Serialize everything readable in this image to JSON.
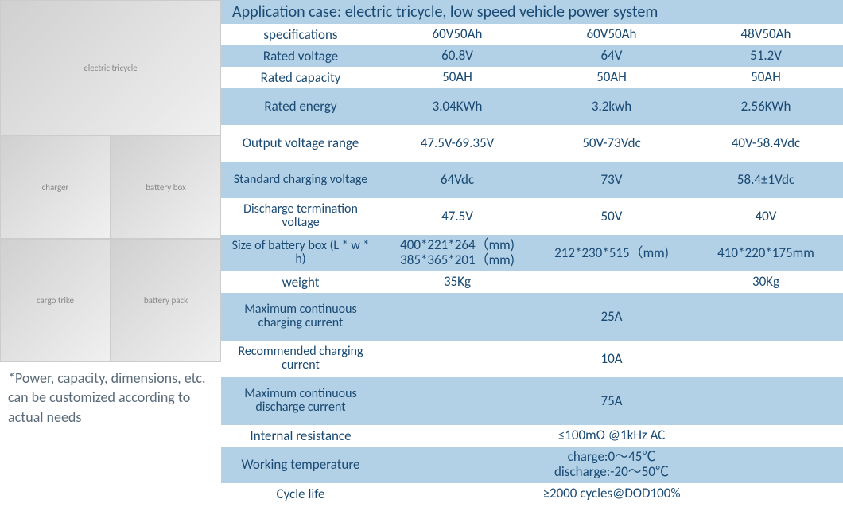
{
  "colors": {
    "band": "#b2d0e6",
    "light": "#ffffff",
    "text": "#1a4a73",
    "footnote": "#5b6b7a"
  },
  "title": "Application case: electric tricycle, low speed vehicle power system",
  "footnote": "*Power, capacity, dimensions, etc. can be customized according to actual needs",
  "images": {
    "top": "electric tricycle",
    "mid_left": "charger",
    "mid_right": "battery box",
    "bot_left": "cargo trike",
    "bot_right": "battery pack"
  },
  "rows": [
    {
      "type": "light",
      "label": "specifications",
      "v1": "60V50Ah",
      "v2": "60V50Ah",
      "v3": "48V50Ah"
    },
    {
      "type": "band",
      "label": "Rated voltage",
      "v1": "60.8V",
      "v2": "64V",
      "v3": "51.2V"
    },
    {
      "type": "light",
      "label": "Rated capacity",
      "v1": "50AH",
      "v2": "50AH",
      "v3": "50AH"
    },
    {
      "type": "band",
      "h": "h2",
      "label": "Rated energy",
      "v1": "3.04KWh",
      "v2": "3.2kwh",
      "v3": "2.56KWh"
    },
    {
      "type": "light",
      "h": "h2",
      "label": "Output voltage range",
      "v1": "47.5V-69.35V",
      "v2": "50V-73Vdc",
      "v3": "40V-58.4Vdc"
    },
    {
      "type": "band",
      "h": "h2",
      "label": "Standard charging voltage",
      "v1": "64Vdc",
      "v2": "73V",
      "v3": "58.4±1Vdc"
    },
    {
      "type": "light",
      "h": "h2",
      "label": "Discharge termination voltage",
      "v1": "47.5V",
      "v2": "50V",
      "v3": "40V"
    },
    {
      "type": "band",
      "h": "h2",
      "label": "Size of battery box (L * w * h)",
      "v1": "400*221*264（mm)\n385*365*201（mm)",
      "v2": "212*230*515（mm)",
      "v3": "410*220*175mm"
    },
    {
      "type": "light",
      "label": "weight",
      "v1": "35Kg",
      "v2": "",
      "v3": "30Kg"
    },
    {
      "type": "band",
      "h": "h3",
      "label": "Maximum continuous charging current",
      "full": "25A"
    },
    {
      "type": "light",
      "h": "h2",
      "label": "Recommended charging current",
      "full": "10A"
    },
    {
      "type": "band",
      "h": "h3",
      "label": "Maximum continuous discharge current",
      "full": "75A"
    },
    {
      "type": "light",
      "label": "Internal resistance",
      "full": "≤100mΩ @1kHz AC"
    },
    {
      "type": "band",
      "h": "h2",
      "label": "Working temperature",
      "full": "charge:0～45℃\ndischarge:-20～50℃"
    },
    {
      "type": "light",
      "label": "Cycle life",
      "full": "≥2000 cycles@DOD100%"
    }
  ]
}
